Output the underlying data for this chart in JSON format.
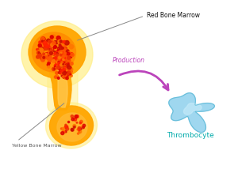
{
  "bg_color": "#ffffff",
  "bone_outer_color": "#FFEE88",
  "bone_mid_color": "#FFA500",
  "bone_dark_color": "#FF8C00",
  "bone_inner_color": "#FF4500",
  "red_marrow_colors": [
    "#FF2200",
    "#FF5500",
    "#CC1100",
    "#FF7700",
    "#EE3300",
    "#DD0000"
  ],
  "thrombocyte_color": "#87CEEB",
  "thrombocyte_dark_color": "#5BB8D4",
  "thrombocyte_light_color": "#C8ECFA",
  "arrow_color": "#BB44BB",
  "label_red_bone": "Red Bone Marrow",
  "label_yellow_bone": "Yellow Bone Marrow",
  "label_production": "Production",
  "label_thrombocyte": "Thrombocyte",
  "line_color": "#888888"
}
